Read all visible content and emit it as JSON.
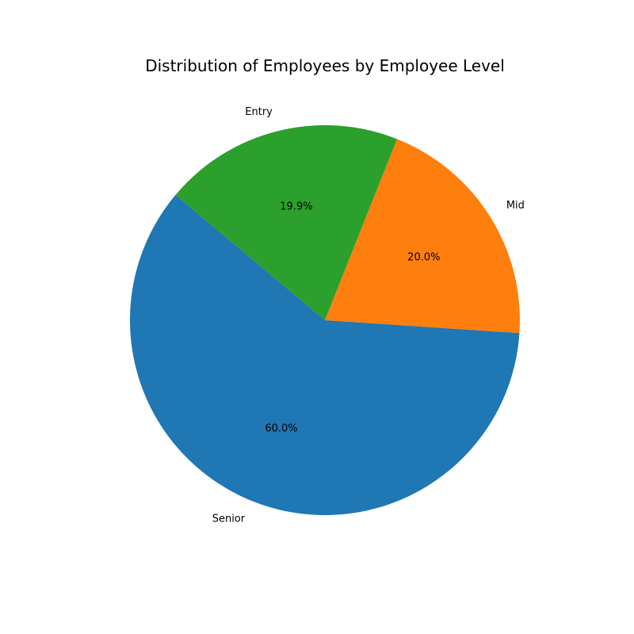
{
  "chart_data": {
    "type": "pie",
    "title": "Distribution of Employees by Employee Level",
    "slices": [
      {
        "label": "Senior",
        "value": 60.0,
        "percent_label": "60.0%",
        "color": "#1f77b4"
      },
      {
        "label": "Mid",
        "value": 20.0,
        "percent_label": "20.0%",
        "color": "#ff7f0e"
      },
      {
        "label": "Entry",
        "value": 19.9,
        "percent_label": "19.9%",
        "color": "#2ca02c"
      }
    ],
    "start_angle_deg": 140,
    "direction": "counterclockwise",
    "legend": "none"
  }
}
